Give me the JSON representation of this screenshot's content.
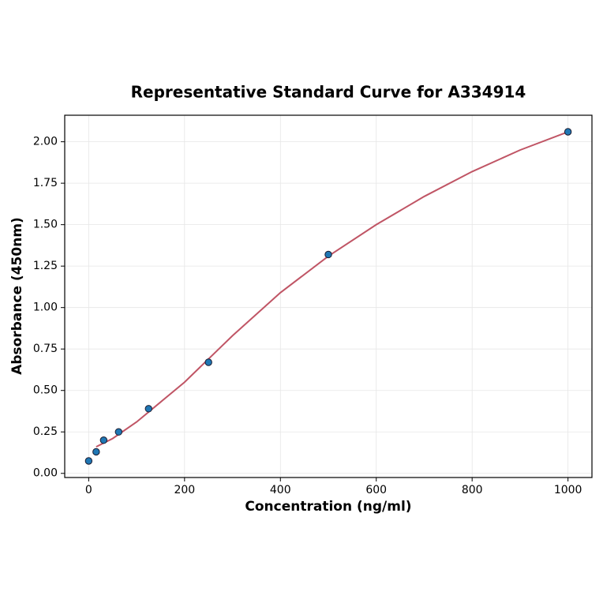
{
  "chart_data": {
    "type": "scatter",
    "title": "Representative Standard Curve for A334914",
    "x_label": "Concentration (ng/ml)",
    "y_label": "Absorbance (450nm)",
    "xlim": [
      -50,
      1050
    ],
    "ylim": [
      -0.025,
      2.16
    ],
    "xticks": [
      0,
      200,
      400,
      600,
      800,
      1000
    ],
    "yticks": [
      {
        "value": 0,
        "label": "0.00"
      },
      {
        "value": 0.25,
        "label": "0.25"
      },
      {
        "value": 0.5,
        "label": "0.50"
      },
      {
        "value": 0.75,
        "label": "0.75"
      },
      {
        "value": 1,
        "label": "1.00"
      },
      {
        "value": 1.25,
        "label": "1.25"
      },
      {
        "value": 1.5,
        "label": "1.50"
      },
      {
        "value": 1.75,
        "label": "1.75"
      },
      {
        "value": 2,
        "label": "2.00"
      }
    ],
    "grid": true,
    "series": [
      {
        "type": "line",
        "color": "#c05565",
        "x": [
          15.6,
          50,
          100,
          150,
          200,
          250,
          300,
          400,
          500,
          600,
          700,
          800,
          900,
          1000
        ],
        "values": [
          0.16,
          0.21,
          0.31,
          0.43,
          0.55,
          0.69,
          0.83,
          1.09,
          1.31,
          1.5,
          1.67,
          1.82,
          1.95,
          2.06
        ]
      },
      {
        "type": "scatter",
        "color": "#1f77b4",
        "x": [
          0,
          15.6,
          31.25,
          62.5,
          125,
          250,
          500,
          1000
        ],
        "values": [
          0.075,
          0.13,
          0.2,
          0.25,
          0.39,
          0.67,
          1.32,
          2.06
        ]
      }
    ]
  }
}
